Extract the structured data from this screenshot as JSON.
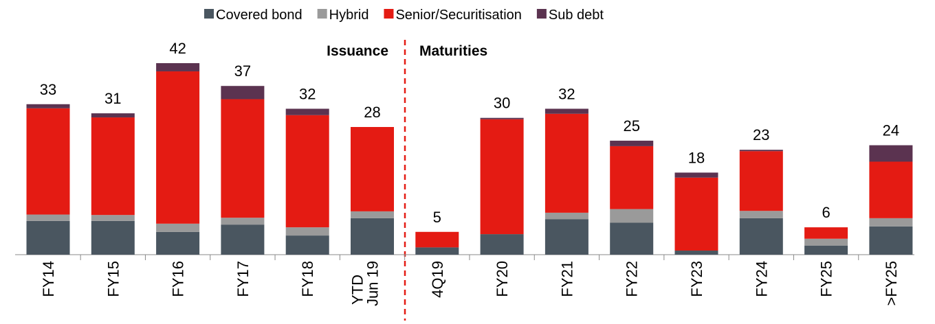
{
  "chart_data": {
    "type": "stacked-bar",
    "categories": [
      "FY14",
      "FY15",
      "FY16",
      "FY17",
      "FY18",
      "YTD Jun 19",
      "4Q19",
      "FY20",
      "FY21",
      "FY22",
      "FY23",
      "FY24",
      "FY25",
      ">FY25"
    ],
    "series": [
      {
        "name": "Covered bond",
        "color": "#4a5660",
        "values": [
          7.4,
          7.4,
          5.0,
          6.6,
          4.2,
          8.0,
          1.6,
          4.5,
          7.8,
          7.0,
          0.9,
          8.0,
          2.0,
          6.2
        ]
      },
      {
        "name": "Hybrid",
        "color": "#9a9a9a",
        "values": [
          1.4,
          1.3,
          1.8,
          1.5,
          1.8,
          1.5,
          0,
          0,
          1.4,
          3.0,
          0,
          1.6,
          1.5,
          1.8
        ]
      },
      {
        "name": "Senior/Securitisation",
        "color": "#e41b13",
        "values": [
          23.3,
          21.4,
          33.4,
          26.0,
          24.6,
          18.5,
          3.4,
          25.2,
          21.7,
          13.8,
          16.0,
          13.1,
          2.5,
          12.4
        ]
      },
      {
        "name": "Sub debt",
        "color": "#5b3350",
        "values": [
          0.9,
          0.9,
          1.8,
          2.9,
          1.4,
          0,
          0,
          0.3,
          1.1,
          1.2,
          1.1,
          0.3,
          0,
          3.6
        ]
      }
    ],
    "totals": [
      33,
      31,
      42,
      37,
      32,
      28,
      5,
      30,
      32,
      25,
      18,
      23,
      6,
      24
    ],
    "annotations": [
      "Issuance",
      "Maturities"
    ]
  }
}
